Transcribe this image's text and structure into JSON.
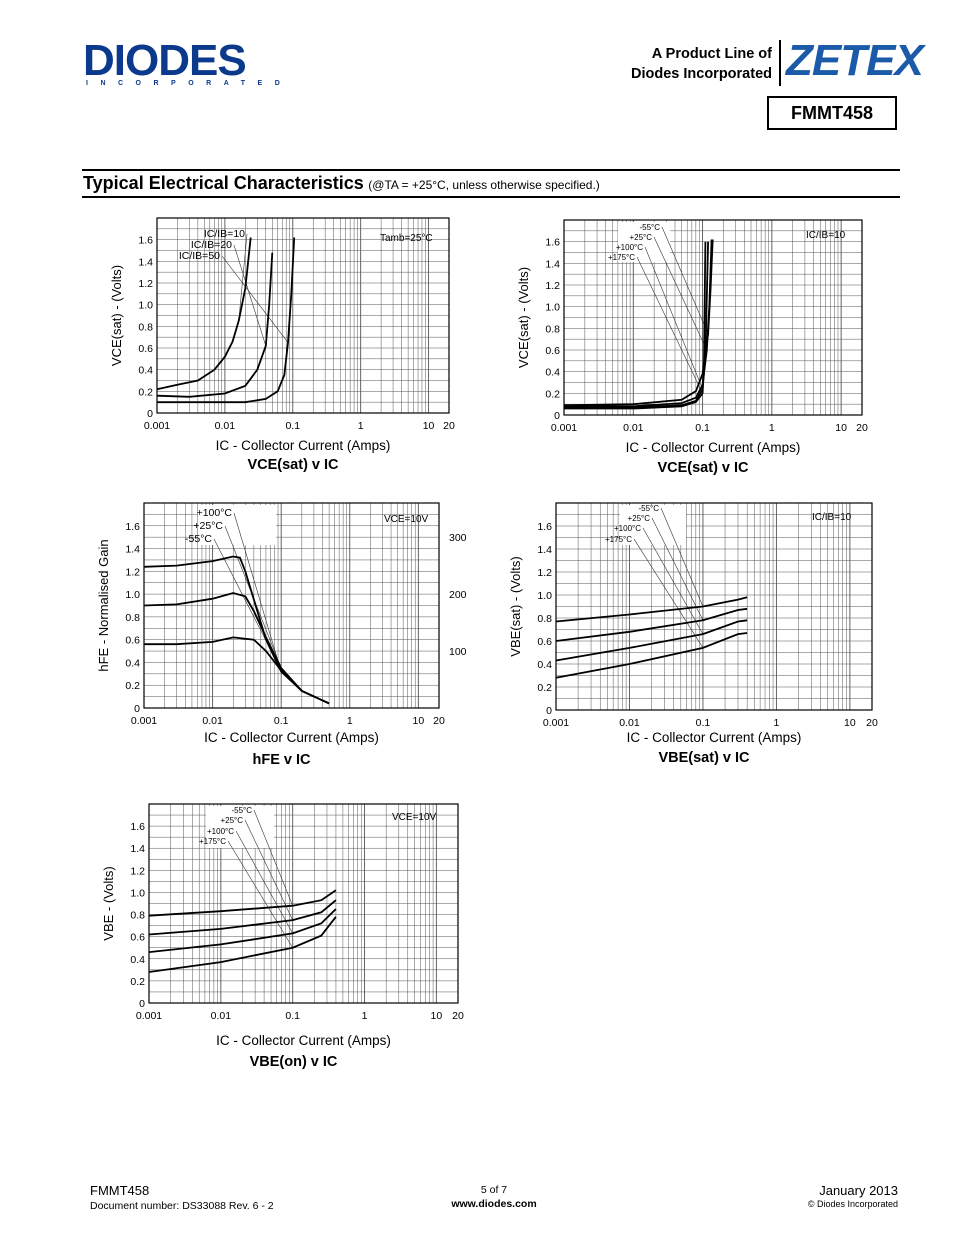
{
  "header": {
    "logo_text": "DIODES",
    "logo_sub": "INCORPORATED",
    "product_line_1": "A Product Line of",
    "product_line_2": "Diodes Incorporated",
    "brand": "ZETEX",
    "part_number": "FMMT458"
  },
  "section": {
    "title": "Typical Electrical Characteristics",
    "condition": "(@TA = +25°C, unless otherwise specified.)"
  },
  "footer": {
    "part": "FMMT458",
    "doc_number": "Document number: DS33088 Rev. 6 - 2",
    "page": "5 of 7",
    "website": "www.diodes.com",
    "date": "January 2013",
    "copyright": "© Diodes Incorporated"
  },
  "chart_data": [
    {
      "id": "c1",
      "type": "line",
      "xscale": "log",
      "title": "VCE(sat) v IC",
      "xlabel": "IC - Collector Current (Amps)",
      "ylabel": "VCE(sat) - (Volts)",
      "xlim": [
        0.001,
        20
      ],
      "ylim": [
        0,
        1.8
      ],
      "x_ticks": [
        "0.001",
        "0.01",
        "0.1",
        "1",
        "10",
        "20"
      ],
      "y_ticks": [
        "0",
        "0.2",
        "0.4",
        "0.6",
        "0.8",
        "1.0",
        "1.2",
        "1.4",
        "1.6"
      ],
      "condition": "Tamb=25°C",
      "labels": [
        "IC/IB=10",
        "IC/IB=20",
        "IC/IB=50"
      ],
      "series": [
        {
          "x": [
            0.001,
            0.002,
            0.004,
            0.007,
            0.01,
            0.013,
            0.016,
            0.02,
            0.024
          ],
          "y": [
            0.22,
            0.26,
            0.3,
            0.4,
            0.52,
            0.66,
            0.85,
            1.15,
            1.62
          ]
        },
        {
          "x": [
            0.001,
            0.003,
            0.01,
            0.02,
            0.03,
            0.04,
            0.045,
            0.05
          ],
          "y": [
            0.16,
            0.15,
            0.18,
            0.25,
            0.4,
            0.62,
            1.0,
            1.48
          ]
        },
        {
          "x": [
            0.001,
            0.005,
            0.02,
            0.04,
            0.06,
            0.075,
            0.085,
            0.095,
            0.105
          ],
          "y": [
            0.1,
            0.1,
            0.1,
            0.13,
            0.2,
            0.35,
            0.65,
            1.1,
            1.62
          ]
        }
      ]
    },
    {
      "id": "c2",
      "type": "line",
      "xscale": "log",
      "title": "VCE(sat) v IC",
      "xlabel": "IC - Collector Current (Amps)",
      "ylabel": "VCE(sat) - (Volts)",
      "xlim": [
        0.001,
        20
      ],
      "ylim": [
        0,
        1.8
      ],
      "x_ticks": [
        "0.001",
        "0.01",
        "0.1",
        "1",
        "10",
        "20"
      ],
      "y_ticks": [
        "0",
        "0.2",
        "0.4",
        "0.6",
        "0.8",
        "1.0",
        "1.2",
        "1.4",
        "1.6"
      ],
      "condition": "IC/IB=10",
      "labels": [
        "-55°C",
        "+25°C",
        "+100°C",
        "+175°C"
      ],
      "series": [
        {
          "x": [
            0.001,
            0.01,
            0.05,
            0.08,
            0.1,
            0.12,
            0.13,
            0.14
          ],
          "y": [
            0.09,
            0.1,
            0.14,
            0.22,
            0.38,
            0.75,
            1.15,
            1.62
          ]
        },
        {
          "x": [
            0.001,
            0.01,
            0.05,
            0.08,
            0.1,
            0.115,
            0.125,
            0.135
          ],
          "y": [
            0.08,
            0.08,
            0.11,
            0.16,
            0.28,
            0.6,
            1.0,
            1.62
          ]
        },
        {
          "x": [
            0.001,
            0.01,
            0.05,
            0.08,
            0.1,
            0.11,
            0.12
          ],
          "y": [
            0.07,
            0.07,
            0.09,
            0.13,
            0.24,
            0.55,
            1.6
          ]
        },
        {
          "x": [
            0.001,
            0.01,
            0.05,
            0.08,
            0.1,
            0.105,
            0.11
          ],
          "y": [
            0.06,
            0.06,
            0.08,
            0.12,
            0.2,
            0.5,
            1.6
          ]
        }
      ]
    },
    {
      "id": "c3",
      "type": "line",
      "xscale": "log",
      "title": "hFE v IC",
      "xlabel": "IC - Collector Current (Amps)",
      "ylabel": "hFE - Normalised Gain",
      "xlim": [
        0.001,
        20
      ],
      "ylim": [
        0,
        1.8
      ],
      "x_ticks": [
        "0.001",
        "0.01",
        "0.1",
        "1",
        "10",
        "20"
      ],
      "y_ticks": [
        "0",
        "0.2",
        "0.4",
        "0.6",
        "0.8",
        "1.0",
        "1.2",
        "1.4",
        "1.6"
      ],
      "y2_ticks": [
        "100",
        "200",
        "300"
      ],
      "condition": "VCE=10V",
      "labels": [
        "+100°C",
        "+25°C",
        "-55°C"
      ],
      "series": [
        {
          "x": [
            0.001,
            0.003,
            0.01,
            0.02,
            0.025,
            0.03,
            0.04,
            0.06,
            0.1,
            0.2,
            0.5
          ],
          "y": [
            1.24,
            1.25,
            1.29,
            1.33,
            1.32,
            1.2,
            0.95,
            0.6,
            0.32,
            0.15,
            0.04
          ]
        },
        {
          "x": [
            0.001,
            0.003,
            0.01,
            0.02,
            0.03,
            0.04,
            0.06,
            0.1,
            0.2,
            0.5
          ],
          "y": [
            0.9,
            0.91,
            0.96,
            1.01,
            0.98,
            0.85,
            0.62,
            0.35,
            0.15,
            0.04
          ]
        },
        {
          "x": [
            0.001,
            0.003,
            0.01,
            0.02,
            0.04,
            0.06,
            0.1,
            0.2,
            0.5
          ],
          "y": [
            0.56,
            0.56,
            0.58,
            0.62,
            0.6,
            0.5,
            0.33,
            0.15,
            0.04
          ]
        }
      ]
    },
    {
      "id": "c4",
      "type": "line",
      "xscale": "log",
      "title": "VBE(sat) v IC",
      "xlabel": "IC - Collector Current (Amps)",
      "ylabel": "VBE(sat) - (Volts)",
      "xlim": [
        0.001,
        20
      ],
      "ylim": [
        0,
        1.8
      ],
      "x_ticks": [
        "0.001",
        "0.01",
        "0.1",
        "1",
        "10",
        "20"
      ],
      "y_ticks": [
        "0",
        "0.2",
        "0.4",
        "0.6",
        "0.8",
        "1.0",
        "1.2",
        "1.4",
        "1.6"
      ],
      "condition": "IC/IB=10",
      "labels": [
        "-55°C",
        "+25°C",
        "+100°C",
        "+175°C"
      ],
      "series": [
        {
          "x": [
            0.001,
            0.01,
            0.1,
            0.3,
            0.4
          ],
          "y": [
            0.77,
            0.83,
            0.9,
            0.96,
            0.98
          ]
        },
        {
          "x": [
            0.001,
            0.01,
            0.1,
            0.3,
            0.4
          ],
          "y": [
            0.6,
            0.68,
            0.78,
            0.87,
            0.88
          ]
        },
        {
          "x": [
            0.001,
            0.01,
            0.1,
            0.3,
            0.4
          ],
          "y": [
            0.43,
            0.54,
            0.66,
            0.77,
            0.78
          ]
        },
        {
          "x": [
            0.001,
            0.01,
            0.1,
            0.3,
            0.4
          ],
          "y": [
            0.28,
            0.4,
            0.54,
            0.66,
            0.67
          ]
        }
      ]
    },
    {
      "id": "c5",
      "type": "line",
      "xscale": "log",
      "title": "VBE(on) v IC",
      "xlabel": "IC - Collector Current (Amps)",
      "ylabel": "VBE - (Volts)",
      "xlim": [
        0.001,
        20
      ],
      "ylim": [
        0,
        1.8
      ],
      "x_ticks": [
        "0.001",
        "0.01",
        "0.1",
        "1",
        "10",
        "20"
      ],
      "y_ticks": [
        "0",
        "0.2",
        "0.4",
        "0.6",
        "0.8",
        "1.0",
        "1.2",
        "1.4",
        "1.6"
      ],
      "condition": "VCE=10V",
      "labels": [
        "-55°C",
        "+25°C",
        "+100°C",
        "+175°C"
      ],
      "series": [
        {
          "x": [
            0.001,
            0.01,
            0.1,
            0.25,
            0.4
          ],
          "y": [
            0.79,
            0.83,
            0.88,
            0.93,
            1.02
          ]
        },
        {
          "x": [
            0.001,
            0.01,
            0.1,
            0.25,
            0.4
          ],
          "y": [
            0.62,
            0.67,
            0.75,
            0.82,
            0.93
          ]
        },
        {
          "x": [
            0.001,
            0.01,
            0.1,
            0.25,
            0.4
          ],
          "y": [
            0.46,
            0.53,
            0.63,
            0.72,
            0.85
          ]
        },
        {
          "x": [
            0.001,
            0.01,
            0.1,
            0.25,
            0.4
          ],
          "y": [
            0.28,
            0.37,
            0.5,
            0.61,
            0.78
          ]
        }
      ]
    }
  ]
}
